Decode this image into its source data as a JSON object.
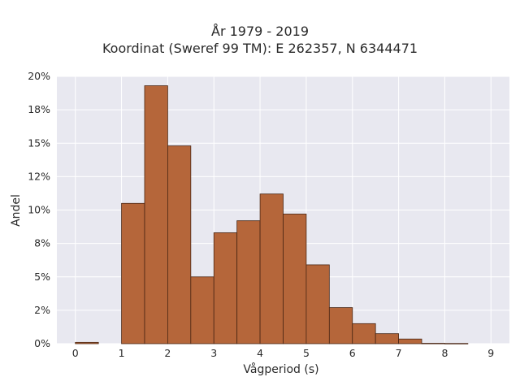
{
  "chart_data": {
    "type": "bar",
    "title_lines": [
      "År 1979 - 2019",
      "Koordinat (Sweref 99 TM): E 262357, N 6344471"
    ],
    "xlabel": "Vågperiod (s)",
    "ylabel": "Andel",
    "x_ticks": [
      "0",
      "1",
      "2",
      "3",
      "4",
      "5",
      "6",
      "7",
      "8",
      "9"
    ],
    "y_ticks": [
      "0%",
      "2%",
      "5%",
      "8%",
      "10%",
      "12%",
      "15%",
      "18%",
      "20%"
    ],
    "xlim": [
      -0.4,
      9.4
    ],
    "ylim": [
      0,
      0.2
    ],
    "bin_width": 0.5,
    "bins": [
      {
        "x0": 0.0,
        "value": 0.001
      },
      {
        "x0": 1.0,
        "value": 0.105
      },
      {
        "x0": 1.5,
        "value": 0.193
      },
      {
        "x0": 2.0,
        "value": 0.148
      },
      {
        "x0": 2.5,
        "value": 0.05
      },
      {
        "x0": 3.0,
        "value": 0.083
      },
      {
        "x0": 3.5,
        "value": 0.092
      },
      {
        "x0": 4.0,
        "value": 0.112
      },
      {
        "x0": 4.5,
        "value": 0.097
      },
      {
        "x0": 5.0,
        "value": 0.059
      },
      {
        "x0": 5.5,
        "value": 0.027
      },
      {
        "x0": 6.0,
        "value": 0.015
      },
      {
        "x0": 6.5,
        "value": 0.0075
      },
      {
        "x0": 7.0,
        "value": 0.0035
      },
      {
        "x0": 7.5,
        "value": 0.0003
      },
      {
        "x0": 8.0,
        "value": 0.0002
      }
    ],
    "grid": true,
    "colors": {
      "bar_fill": "#b5663a",
      "bar_stroke": "#4a2614",
      "plot_background": "#e8e8f0",
      "grid": "#ffffff"
    }
  }
}
